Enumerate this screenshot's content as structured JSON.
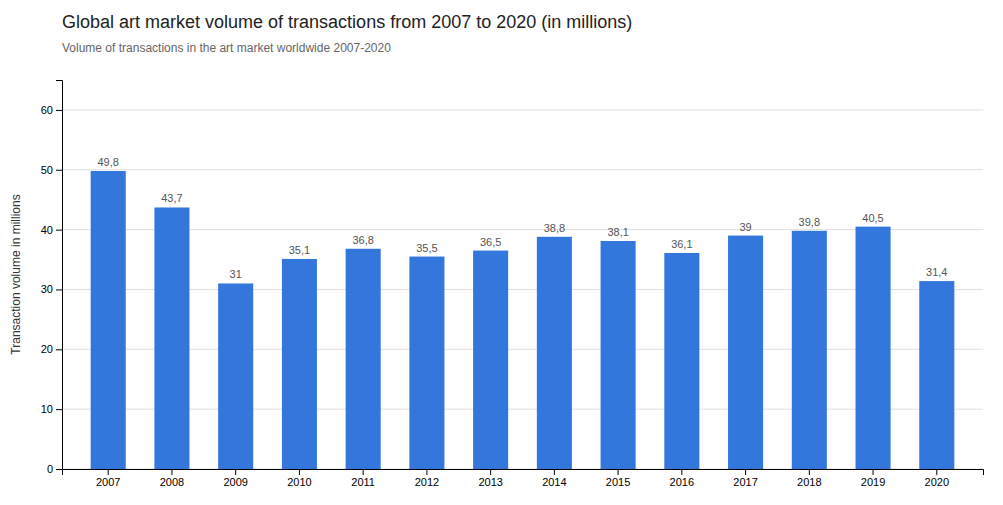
{
  "chart_data": {
    "type": "bar",
    "title": "Global art market volume of transactions from 2007 to 2020 (in millions)",
    "subtitle": "Volume of transactions in the art market worldwide 2007-2020",
    "y_label": "Transaction volume in millions",
    "categories": [
      "2007",
      "2008",
      "2009",
      "2010",
      "2011",
      "2012",
      "2013",
      "2014",
      "2015",
      "2016",
      "2017",
      "2018",
      "2019",
      "2020"
    ],
    "values": [
      49.8,
      43.7,
      31.0,
      35.1,
      36.8,
      35.5,
      36.5,
      38.8,
      38.1,
      36.1,
      39.0,
      39.8,
      40.5,
      31.4
    ],
    "value_labels": [
      "49,8",
      "43,7",
      "31",
      "35,1",
      "36,8",
      "35,5",
      "36,5",
      "38,8",
      "38,1",
      "36,1",
      "39",
      "39,8",
      "40,5",
      "31,4"
    ],
    "data_labels": true,
    "color": "#3377dd",
    "ylim": [
      0,
      65
    ],
    "yticks": [
      0,
      10,
      20,
      30,
      40,
      50,
      60
    ],
    "grid": true
  }
}
